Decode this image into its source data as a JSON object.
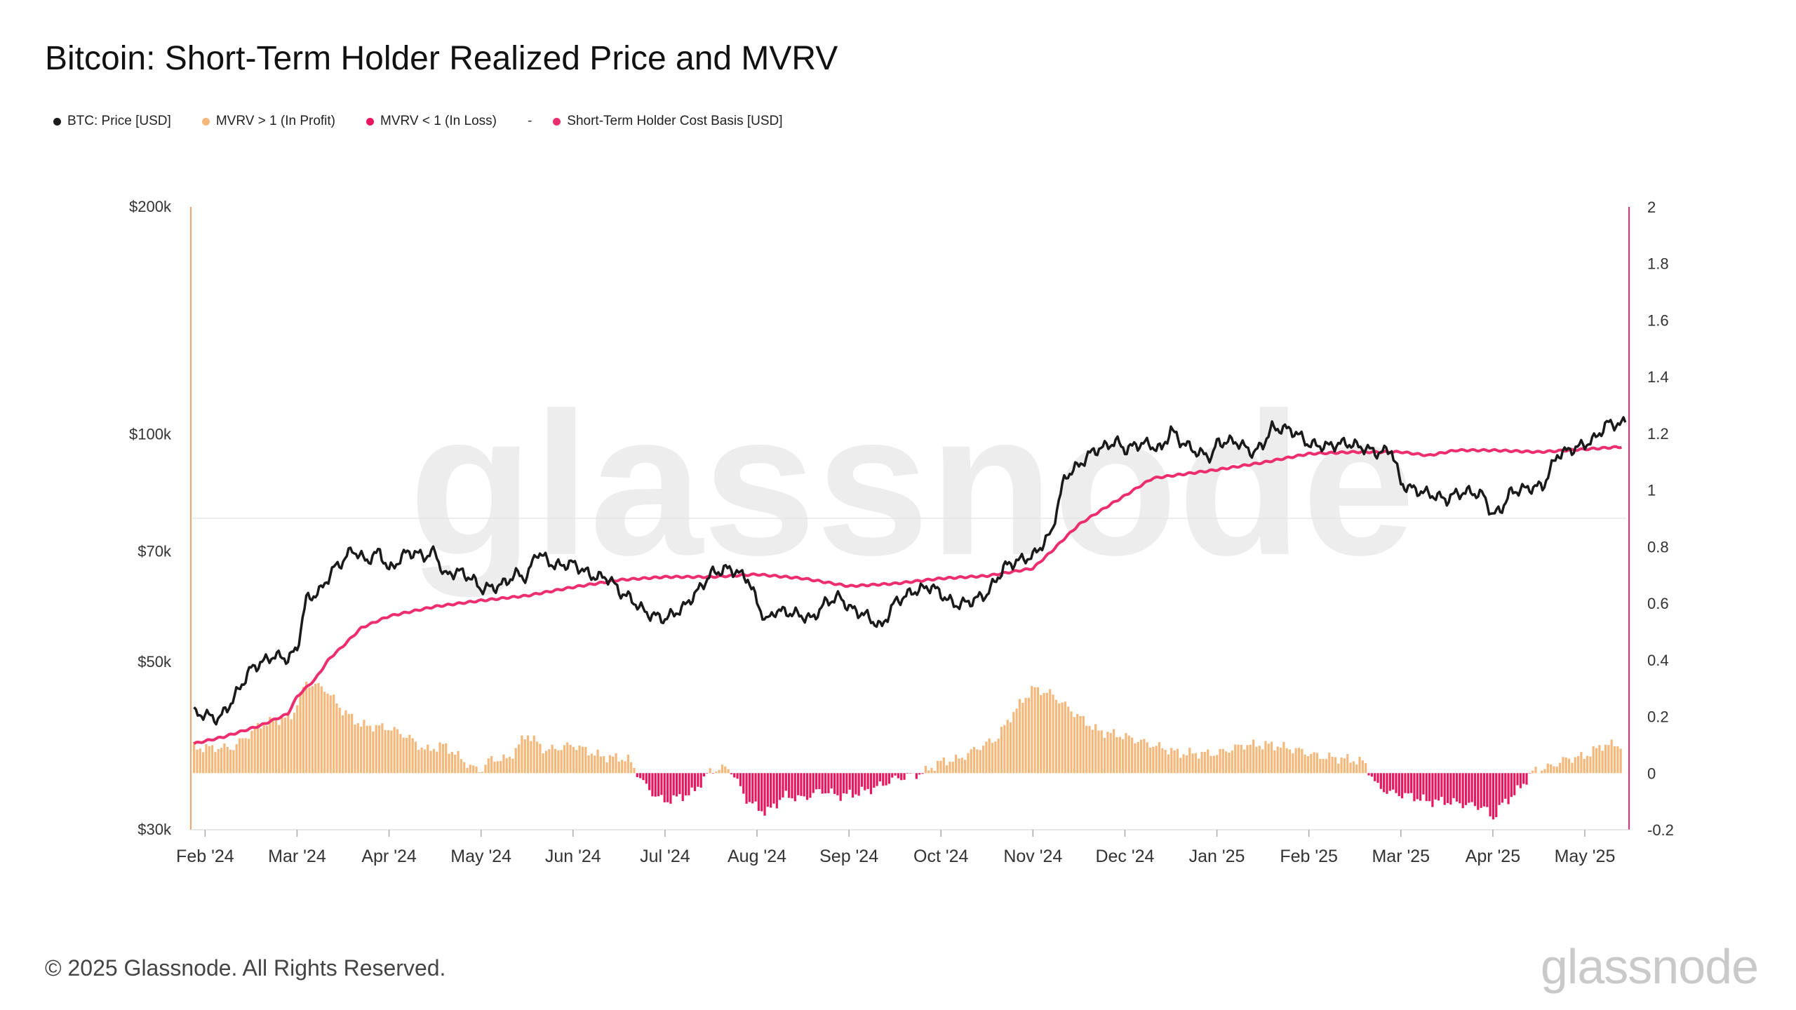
{
  "title": "Bitcoin: Short-Term Holder Realized Price and MVRV",
  "legend": [
    {
      "label": "BTC: Price [USD]",
      "color": "#1a1a1a"
    },
    {
      "label": "MVRV > 1 (In Profit)",
      "color": "#f5b87a"
    },
    {
      "label": "MVRV < 1 (In Loss)",
      "color": "#e8165f"
    },
    {
      "label": "Short-Term Holder Cost Basis [USD]",
      "color": "#ec2e6e"
    }
  ],
  "legend_dash": "-",
  "footer": {
    "copyright": "© 2025 Glassnode. All Rights Reserved.",
    "logo": "glassnode"
  },
  "watermark": "glassnode",
  "chart_data": {
    "type": "line",
    "title": "Bitcoin: Short-Term Holder Realized Price and MVRV",
    "x_ticks": [
      "Feb '24",
      "Mar '24",
      "Apr '24",
      "May '24",
      "Jun '24",
      "Jul '24",
      "Aug '24",
      "Sep '24",
      "Oct '24",
      "Nov '24",
      "Dec '24",
      "Jan '25",
      "Feb '25",
      "Mar '25",
      "Apr '25",
      "May '25"
    ],
    "x_range": [
      -0.14,
      15.45
    ],
    "y_left": {
      "scale": "log",
      "range": [
        30000,
        200000
      ],
      "ticks": [
        200000,
        100000,
        70000,
        50000,
        30000
      ],
      "tick_labels": [
        "$200k",
        "$100k",
        "$70k",
        "$50k",
        "$30k"
      ]
    },
    "y_right": {
      "range": [
        -0.2,
        2
      ],
      "ticks": [
        2,
        1.8,
        1.6,
        1.4,
        1.2,
        1,
        0.8,
        0.6,
        0.4,
        0.2,
        0,
        -0.2
      ],
      "tick_labels": [
        "2",
        "1.8",
        "1.6",
        "1.4",
        "1.2",
        "1",
        "0.8",
        "0.6",
        "0.4",
        "0.2",
        "0",
        "-0.2"
      ],
      "reference_line": 0.9
    },
    "series": [
      {
        "name": "BTC: Price [USD]",
        "axis": "left",
        "color": "#1a1a1a",
        "x": [
          -0.12,
          0,
          0.15,
          0.3,
          0.5,
          0.75,
          0.9,
          1.0,
          1.1,
          1.25,
          1.4,
          1.5,
          1.6,
          1.75,
          1.9,
          2.0,
          2.2,
          2.4,
          2.5,
          2.6,
          2.75,
          2.9,
          3.0,
          3.2,
          3.4,
          3.5,
          3.6,
          3.8,
          4.0,
          4.2,
          4.4,
          4.5,
          4.6,
          4.8,
          5.0,
          5.2,
          5.4,
          5.5,
          5.7,
          5.9,
          6.0,
          6.1,
          6.2,
          6.4,
          6.6,
          6.75,
          6.9,
          7.0,
          7.2,
          7.35,
          7.5,
          7.7,
          7.9,
          8.0,
          8.15,
          8.3,
          8.5,
          8.7,
          8.9,
          9.0,
          9.2,
          9.35,
          9.5,
          9.65,
          9.8,
          9.9,
          10.0,
          10.2,
          10.4,
          10.5,
          10.6,
          10.8,
          10.95,
          11.0,
          11.2,
          11.4,
          11.5,
          11.6,
          11.8,
          11.95,
          12.0,
          12.2,
          12.4,
          12.6,
          12.75,
          12.9,
          13.0,
          13.15,
          13.3,
          13.5,
          13.6,
          13.75,
          13.9,
          14.0,
          14.1,
          14.2,
          14.4,
          14.55,
          14.7,
          14.85,
          15.0,
          15.1,
          15.25,
          15.4,
          15.45
        ],
        "y": [
          42800,
          42600,
          42000,
          44500,
          49000,
          51000,
          50500,
          52000,
          60500,
          62000,
          66500,
          68000,
          70500,
          68000,
          70000,
          66000,
          70000,
          69000,
          70000,
          65000,
          66000,
          64500,
          62500,
          63000,
          65500,
          64500,
          70000,
          67000,
          67500,
          65000,
          64500,
          62000,
          61000,
          58000,
          57000,
          59000,
          63000,
          65500,
          66500,
          64500,
          60000,
          56500,
          58500,
          58000,
          57000,
          60000,
          61000,
          59000,
          57500,
          55500,
          60000,
          62000,
          63000,
          61500,
          59500,
          60000,
          61500,
          67000,
          68500,
          69000,
          74000,
          88000,
          91000,
          95000,
          96500,
          98000,
          95500,
          97500,
          95500,
          101500,
          98000,
          94500,
          93500,
          97500,
          98000,
          94500,
          97000,
          102000,
          101500,
          98500,
          97000,
          96500,
          97500,
          96000,
          94500,
          95500,
          86000,
          84500,
          83500,
          82000,
          83500,
          84000,
          83000,
          78000,
          80000,
          84000,
          85000,
          85500,
          94000,
          95500,
          97000,
          98500,
          103500,
          103000,
          104500
        ],
        "labels_shown": false
      },
      {
        "name": "Short-Term Holder Cost Basis [USD]",
        "axis": "left",
        "color": "#ec2e6e",
        "x": [
          -0.12,
          0.2,
          0.6,
          0.9,
          1.0,
          1.2,
          1.35,
          1.5,
          1.7,
          2.0,
          2.5,
          3.0,
          3.5,
          4.0,
          4.5,
          5.0,
          5.5,
          6.0,
          6.5,
          7.0,
          7.5,
          8.0,
          8.5,
          9.0,
          9.2,
          9.5,
          10.0,
          10.3,
          10.6,
          11.0,
          11.5,
          12.0,
          12.5,
          13.0,
          13.3,
          13.6,
          14.0,
          14.5,
          15.0,
          15.4
        ],
        "y": [
          39000,
          39800,
          41200,
          42700,
          45000,
          47500,
          50500,
          52500,
          55500,
          57500,
          59200,
          60300,
          61200,
          62800,
          64200,
          64800,
          64800,
          65300,
          64500,
          63000,
          63500,
          64500,
          65000,
          66500,
          70000,
          76000,
          83000,
          87500,
          88500,
          89800,
          91800,
          94300,
          94800,
          94800,
          93800,
          95300,
          95300,
          94800,
          95600,
          96300
        ],
        "labels_shown": false
      },
      {
        "name": "MVRV",
        "axis": "right",
        "type": "bar",
        "positive_color": "#f5b87a",
        "negative_color": "#e8165f",
        "x": [
          -0.12,
          0.3,
          0.6,
          0.8,
          0.95,
          1.0,
          1.1,
          1.3,
          1.5,
          1.7,
          2.0,
          2.2,
          2.4,
          2.6,
          2.9,
          3.0,
          3.1,
          3.3,
          3.5,
          3.7,
          4.0,
          4.3,
          4.6,
          4.8,
          4.9,
          5.0,
          5.3,
          5.5,
          5.7,
          5.9,
          6.1,
          6.3,
          6.5,
          6.7,
          6.9,
          7.1,
          7.3,
          7.5,
          7.8,
          8.0,
          8.2,
          8.4,
          8.6,
          8.8,
          9.0,
          9.2,
          9.5,
          9.7,
          10.0,
          10.3,
          10.6,
          11.0,
          11.3,
          11.6,
          11.9,
          12.1,
          12.4,
          12.6,
          12.75,
          12.9,
          13.1,
          13.3,
          13.5,
          13.7,
          13.9,
          14.0,
          14.1,
          14.25,
          14.45,
          14.6,
          14.8,
          15.0,
          15.2,
          15.4
        ],
        "y": [
          0.09,
          0.09,
          0.17,
          0.19,
          0.2,
          0.25,
          0.32,
          0.3,
          0.22,
          0.17,
          0.16,
          0.13,
          0.08,
          0.1,
          0.02,
          0.01,
          0.05,
          0.05,
          0.14,
          0.08,
          0.1,
          0.06,
          0.05,
          -0.05,
          -0.08,
          -0.1,
          -0.07,
          0.01,
          0.02,
          -0.1,
          -0.14,
          -0.08,
          -0.09,
          -0.06,
          -0.08,
          -0.07,
          -0.05,
          -0.02,
          0.0,
          0.04,
          0.05,
          0.09,
          0.12,
          0.22,
          0.3,
          0.28,
          0.2,
          0.15,
          0.13,
          0.1,
          0.07,
          0.07,
          0.1,
          0.1,
          0.08,
          0.06,
          0.05,
          0.04,
          -0.05,
          -0.07,
          -0.08,
          -0.1,
          -0.1,
          -0.11,
          -0.12,
          -0.16,
          -0.11,
          -0.07,
          0.01,
          0.02,
          0.05,
          0.06,
          0.1,
          0.1
        ],
        "labels_shown": false
      }
    ],
    "grid": false
  }
}
